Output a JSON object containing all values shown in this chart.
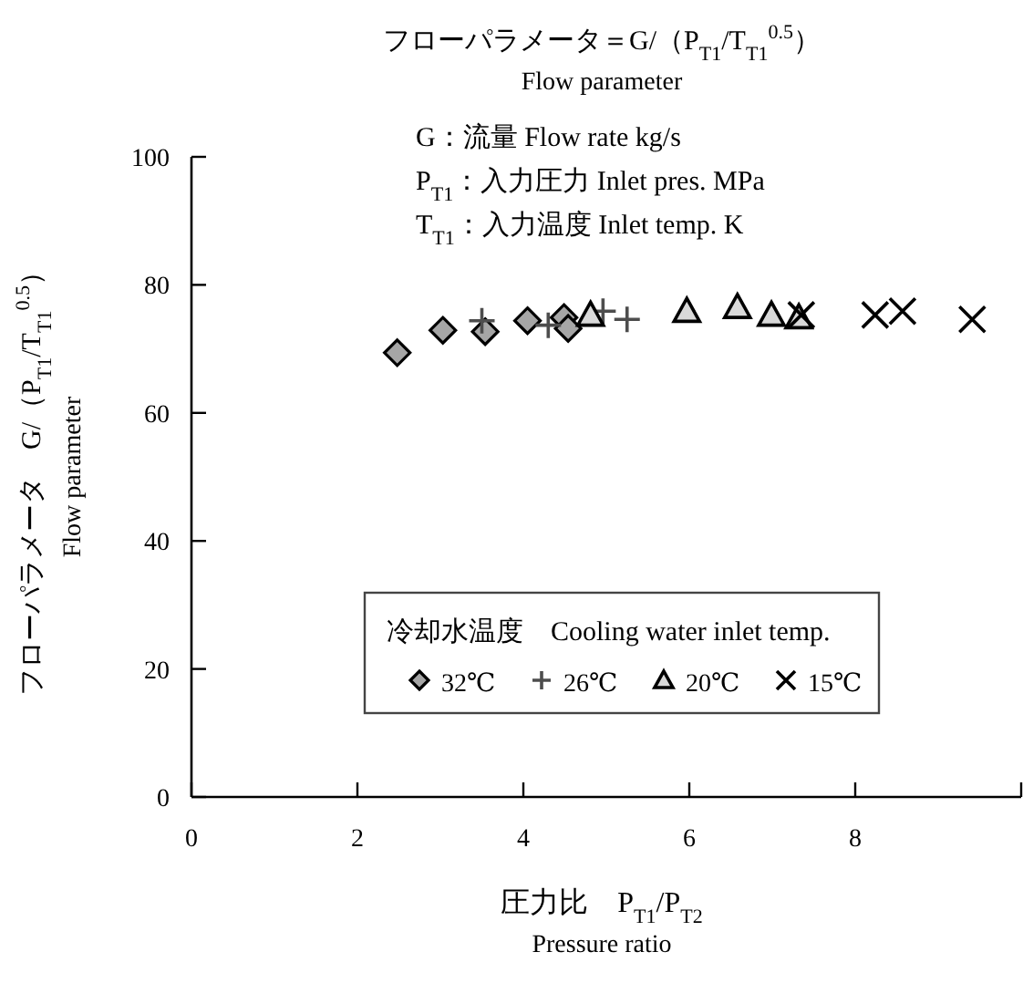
{
  "chart_data": {
    "type": "scatter",
    "title": "フローパラメータ＝G/（P$_{T1}$/T$_{T1}$$^{0.5}$）",
    "subtitle": "Flow parameter",
    "annotations": [
      "G：流量 Flow rate kg/s",
      "P$_{T1}$：入力圧力 Inlet pres. MPa",
      "T$_{T1}$：入力温度 Inlet temp. K"
    ],
    "xlabel": "圧力比　P$_{T1}$/P$_{T2}$\nPressure ratio",
    "ylabel": "フローパラメータ　G/（P$_{T1}$/T$_{T1}$$^{0.5}$）\nFlow parameter",
    "legend_title": "冷却水温度　Cooling water inlet temp.",
    "legend": "bottom right",
    "grid": false,
    "xlim": [
      0,
      10
    ],
    "ylim": [
      0,
      100
    ],
    "xticks": [
      0,
      2,
      4,
      6,
      8,
      {
        "value": 10,
        "label": null
      }
    ],
    "yticks": [
      0,
      20,
      40,
      60,
      80,
      100
    ],
    "series": [
      {
        "name": "32℃",
        "color": "#a6a6a6",
        "marker": "diamond",
        "x": [
          2.48,
          3.03,
          3.54,
          4.05,
          4.49,
          4.54
        ],
        "values": [
          69.4,
          72.9,
          72.7,
          74.4,
          74.9,
          73.2
        ]
      },
      {
        "name": "26℃",
        "color": "#4d4d4d",
        "marker": "plus",
        "x": [
          3.5,
          4.3,
          4.96,
          5.25
        ],
        "values": [
          74.4,
          73.7,
          75.9,
          74.6
        ]
      },
      {
        "name": "20℃",
        "color": "#d9d9d9",
        "marker": "triangle",
        "x": [
          4.81,
          5.97,
          6.58,
          6.99,
          7.32
        ],
        "values": [
          75.3,
          75.9,
          76.5,
          75.3,
          74.9
        ]
      },
      {
        "name": "15℃",
        "color": "#000000",
        "marker": "cross",
        "x": [
          7.35,
          8.24,
          8.57,
          9.41
        ],
        "values": [
          75.3,
          75.3,
          75.9,
          74.6
        ]
      }
    ]
  }
}
